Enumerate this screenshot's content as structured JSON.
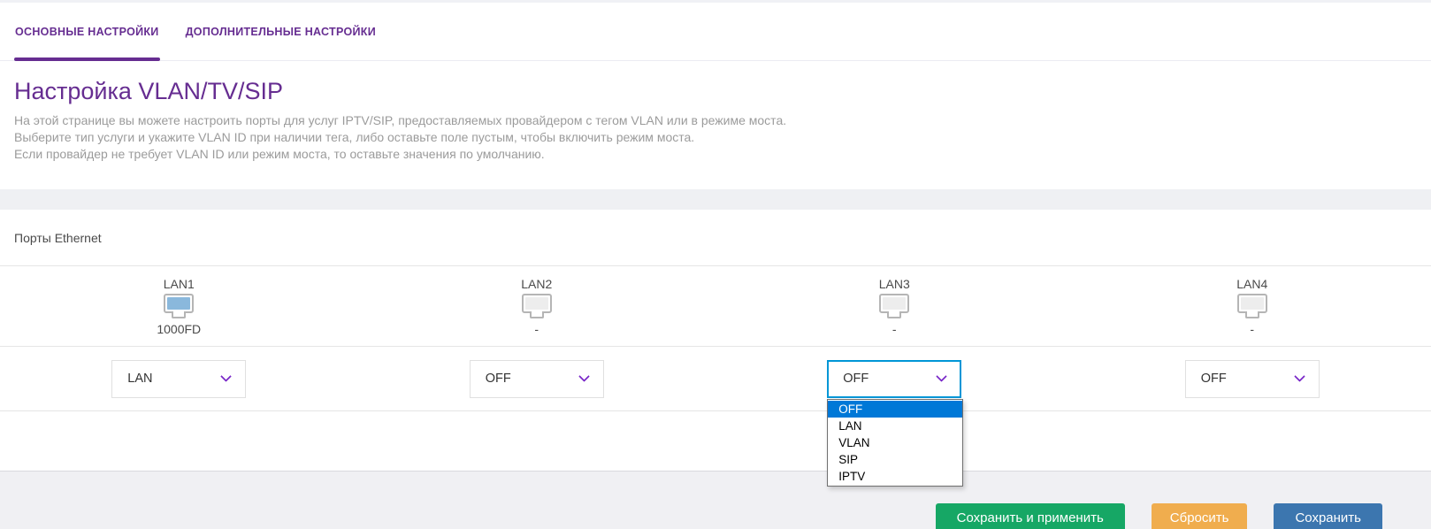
{
  "tabs": [
    {
      "label": "ОСНОВНЫЕ НАСТРОЙКИ",
      "active": true
    },
    {
      "label": "ДОПОЛНИТЕЛЬНЫЕ НАСТРОЙКИ",
      "active": false
    }
  ],
  "page": {
    "title": "Настройка VLAN/TV/SIP",
    "description_lines": [
      "На этой странице вы можете настроить порты для услуг IPTV/SIP, предоставляемых провайдером с тегом VLAN или в режиме моста.",
      "Выберите тип услуги и укажите VLAN ID при наличии тега, либо оставьте поле пустым, чтобы включить режим моста.",
      "Если провайдер не требует VLAN ID или режим моста, то оставьте значения по умолчанию."
    ]
  },
  "ports_section": {
    "title": "Порты Ethernet",
    "ports": [
      {
        "name": "LAN1",
        "status": "1000FD",
        "link_up": true,
        "selected": "LAN"
      },
      {
        "name": "LAN2",
        "status": "-",
        "link_up": false,
        "selected": "OFF"
      },
      {
        "name": "LAN3",
        "status": "-",
        "link_up": false,
        "selected": "OFF",
        "dropdown_open": true
      },
      {
        "name": "LAN4",
        "status": "-",
        "link_up": false,
        "selected": "OFF"
      }
    ],
    "dropdown_options": [
      "OFF",
      "LAN",
      "VLAN",
      "SIP",
      "IPTV"
    ],
    "dropdown_highlighted": "OFF"
  },
  "footer": {
    "buttons": [
      {
        "label": "Сохранить и применить",
        "color": "#16a765"
      },
      {
        "label": "Сбросить",
        "color": "#f0ad4e"
      },
      {
        "label": "Сохранить",
        "color": "#3c76af"
      }
    ]
  },
  "colors": {
    "accent_purple": "#662d91",
    "chevron_purple": "#7b2ac9",
    "focus_border_blue": "#0096d6",
    "option_highlight_blue": "#0078d7",
    "port_active_fill": "#8ab8dc",
    "port_inactive_fill": "#ededed"
  }
}
